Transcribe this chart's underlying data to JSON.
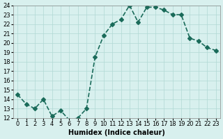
{
  "x": [
    0,
    1,
    2,
    3,
    4,
    5,
    6,
    7,
    8,
    9,
    10,
    11,
    12,
    13,
    14,
    15,
    16,
    17,
    18,
    19,
    20,
    21,
    22,
    23
  ],
  "y": [
    14.5,
    13.5,
    13.0,
    14.0,
    12.2,
    12.8,
    11.8,
    12.0,
    13.0,
    18.5,
    20.8,
    22.0,
    22.5,
    24.0,
    22.2,
    23.8,
    23.8,
    23.5,
    23.0,
    23.0,
    20.5,
    20.2,
    19.5,
    19.2
  ],
  "line_color": "#1a6b5a",
  "marker": "D",
  "marker_size": 3,
  "line_width": 1.2,
  "bg_color": "#d8f0ee",
  "grid_color": "#b0d8d4",
  "xlabel": "Humidex (Indice chaleur)",
  "ylim": [
    12,
    24
  ],
  "xlim": [
    -0.5,
    23.5
  ],
  "yticks": [
    12,
    13,
    14,
    15,
    16,
    17,
    18,
    19,
    20,
    21,
    22,
    23,
    24
  ],
  "xticks": [
    0,
    1,
    2,
    3,
    4,
    5,
    6,
    7,
    8,
    9,
    10,
    11,
    12,
    13,
    14,
    15,
    16,
    17,
    18,
    19,
    20,
    21,
    22,
    23
  ],
  "tick_fontsize": 6,
  "xlabel_fontsize": 7
}
